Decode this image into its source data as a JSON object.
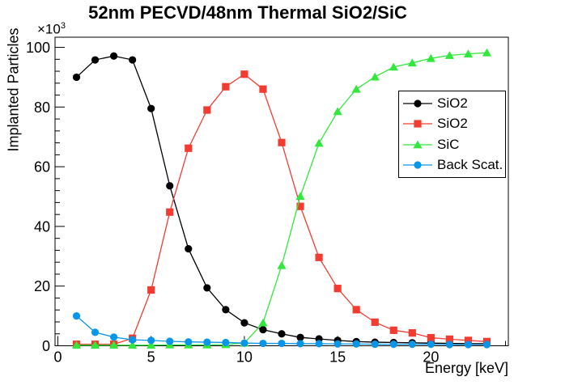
{
  "title": "52nm PECVD/48nm Thermal SiO2/SiC",
  "axes": {
    "x_label": "Energy [keV]",
    "y_label": "Implanted Particles",
    "y_multiplier": "×10",
    "y_exponent": "3",
    "x_ticks": [
      0,
      5,
      10,
      15,
      20
    ],
    "y_ticks": [
      0,
      20,
      40,
      60,
      80,
      100
    ]
  },
  "chart_data": {
    "type": "line",
    "title": "52nm PECVD/48nm Thermal SiO2/SiC",
    "xlabel": "Energy [keV]",
    "ylabel": "Implanted Particles (×10³)",
    "xlim": [
      -0.15,
      24.15
    ],
    "ylim": [
      0,
      103.4
    ],
    "grid": false,
    "legend_position": "middle-right",
    "x": [
      1,
      2,
      3,
      4,
      5,
      6,
      7,
      8,
      9,
      10,
      11,
      12,
      13,
      14,
      15,
      16,
      17,
      18,
      19,
      20,
      21,
      22,
      23
    ],
    "series": [
      {
        "name": "SiO2",
        "color": "#000000",
        "marker": "circle",
        "values": [
          90.0,
          95.8,
          97.1,
          95.8,
          79.5,
          53.6,
          32.5,
          19.4,
          12.1,
          7.7,
          5.4,
          4.0,
          2.8,
          2.3,
          1.8,
          1.4,
          1.2,
          1.1,
          1.0,
          0.9,
          0.8,
          0.7,
          0.7
        ]
      },
      {
        "name": "SiO2",
        "color": "#f23c32",
        "marker": "square",
        "values": [
          0.5,
          0.5,
          0.5,
          2.5,
          18.7,
          44.8,
          66.2,
          79.0,
          86.8,
          91.0,
          86.0,
          68.1,
          46.7,
          29.6,
          19.2,
          12.1,
          7.9,
          5.2,
          4.3,
          2.7,
          2.2,
          1.8,
          1.4
        ]
      },
      {
        "name": "SiC",
        "color": "#33e83c",
        "marker": "triangle",
        "values": [
          0.2,
          0.2,
          0.2,
          0.2,
          0.2,
          0.3,
          0.3,
          0.3,
          0.4,
          0.9,
          7.7,
          26.9,
          50.1,
          67.9,
          78.5,
          86.0,
          90.1,
          93.4,
          94.8,
          96.3,
          97.3,
          97.8,
          98.2
        ]
      },
      {
        "name": "Back Scat.",
        "color": "#0a96e8",
        "marker": "circle",
        "values": [
          10.0,
          4.5,
          2.9,
          2.0,
          1.8,
          1.5,
          1.3,
          1.2,
          1.1,
          0.9,
          0.8,
          0.8,
          0.7,
          0.7,
          0.6,
          0.6,
          0.5,
          0.5,
          0.5,
          0.5,
          0.4,
          0.4,
          0.4
        ]
      }
    ]
  }
}
